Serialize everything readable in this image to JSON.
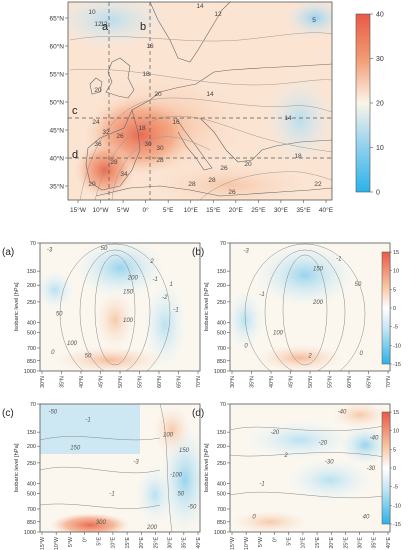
{
  "colors": {
    "warm_max": "#e85a45",
    "warm_mid": "#f4a27a",
    "neutral": "#fbf5e8",
    "cool_mid": "#8fd0ee",
    "cool_max": "#2ab3e8",
    "sea": "#fde6d3",
    "frame": "#555555",
    "dash": "#555555",
    "contour": "#888888"
  },
  "chart_data": [
    {
      "type": "heatmap",
      "id": "map",
      "x_ticks": [
        "15°W",
        "10°W",
        "5°W",
        "0°",
        "5°E",
        "10°E",
        "15°E",
        "20°E",
        "25°E",
        "30°E",
        "35°E",
        "40°E"
      ],
      "y_ticks": [
        "35°N",
        "40°N",
        "45°N",
        "50°N",
        "55°N",
        "60°N",
        "65°N"
      ],
      "section_labels": [
        "a",
        "b",
        "c",
        "d"
      ],
      "contour_labels": [
        "10",
        "12",
        "12",
        "14",
        "12",
        "5",
        "16",
        "18",
        "20",
        "14",
        "20",
        "24",
        "32",
        "26",
        "16",
        "36",
        "18",
        "20",
        "30",
        "30",
        "28",
        "28",
        "34",
        "28",
        "28",
        "20",
        "26",
        "26",
        "18",
        "14",
        "22"
      ],
      "colorbar": {
        "ticks": [
          "40",
          "30",
          "20",
          "10",
          "0"
        ],
        "range": [
          0,
          40
        ]
      }
    },
    {
      "type": "heatmap",
      "id": "a",
      "panel_label": "(a)",
      "ylabel": "Isobaric level [hPa]",
      "y_ticks": [
        "70",
        "150",
        "200",
        "250",
        "400",
        "500",
        "700",
        "850",
        "1000"
      ],
      "x_ticks": [
        "30°N",
        "35°N",
        "40°N",
        "45°N",
        "50°N",
        "55°N",
        "60°N",
        "65°N",
        "70°N"
      ],
      "contour_labels": [
        "-3",
        "50",
        "200",
        "150",
        "100",
        "50",
        "2",
        "-1",
        "1",
        "-2",
        "-1",
        "100",
        "50",
        "0"
      ]
    },
    {
      "type": "heatmap",
      "id": "b",
      "panel_label": "(b)",
      "ylabel": "Isobaric level [hPa]",
      "y_ticks": [
        "70",
        "150",
        "200",
        "250",
        "400",
        "500",
        "700",
        "850",
        "1000"
      ],
      "x_ticks": [
        "30°N",
        "35°N",
        "40°N",
        "45°N",
        "50°N",
        "55°N",
        "60°N",
        "65°N",
        "70°N"
      ],
      "contour_labels": [
        "-3",
        "150",
        "-1",
        "200",
        "50",
        "-1",
        "100",
        "0",
        "2",
        "0"
      ],
      "colorbar": {
        "ticks": [
          "15",
          "10",
          "5",
          "0",
          "-5",
          "-10",
          "-15"
        ],
        "range": [
          -15,
          15
        ]
      }
    },
    {
      "type": "heatmap",
      "id": "c",
      "panel_label": "(c)",
      "ylabel": "Isobaric level [hPa]",
      "y_ticks": [
        "70",
        "150",
        "200",
        "250",
        "400",
        "500",
        "700",
        "850",
        "1000"
      ],
      "x_ticks": [
        "15°W",
        "10°W",
        "5°W",
        "0°",
        "5°E",
        "10°E",
        "15°E",
        "20°E",
        "25°E",
        "30°E",
        "35°E",
        "40°E"
      ],
      "contour_labels": [
        "-50",
        "-1",
        "150",
        "100",
        "150",
        "-100",
        "-3",
        "50",
        "-1",
        "300",
        "-50",
        "200"
      ]
    },
    {
      "type": "heatmap",
      "id": "d",
      "panel_label": "(d)",
      "ylabel": "Isobaric level [hPa]",
      "y_ticks": [
        "70",
        "150",
        "200",
        "250",
        "400",
        "500",
        "700",
        "850",
        "1000"
      ],
      "x_ticks": [
        "15°W",
        "10°W",
        "5°W",
        "0°",
        "5°E",
        "10°E",
        "15°E",
        "20°E",
        "25°E",
        "30°E",
        "35°E",
        "40°E"
      ],
      "contour_labels": [
        "-40",
        "-20",
        "-20",
        "-30",
        "2",
        "-40",
        "-30",
        "-1",
        "40",
        "0"
      ],
      "colorbar": {
        "ticks": [
          "15",
          "10",
          "5",
          "0",
          "-5",
          "-10",
          "-15"
        ],
        "range": [
          -15,
          15
        ]
      }
    }
  ]
}
